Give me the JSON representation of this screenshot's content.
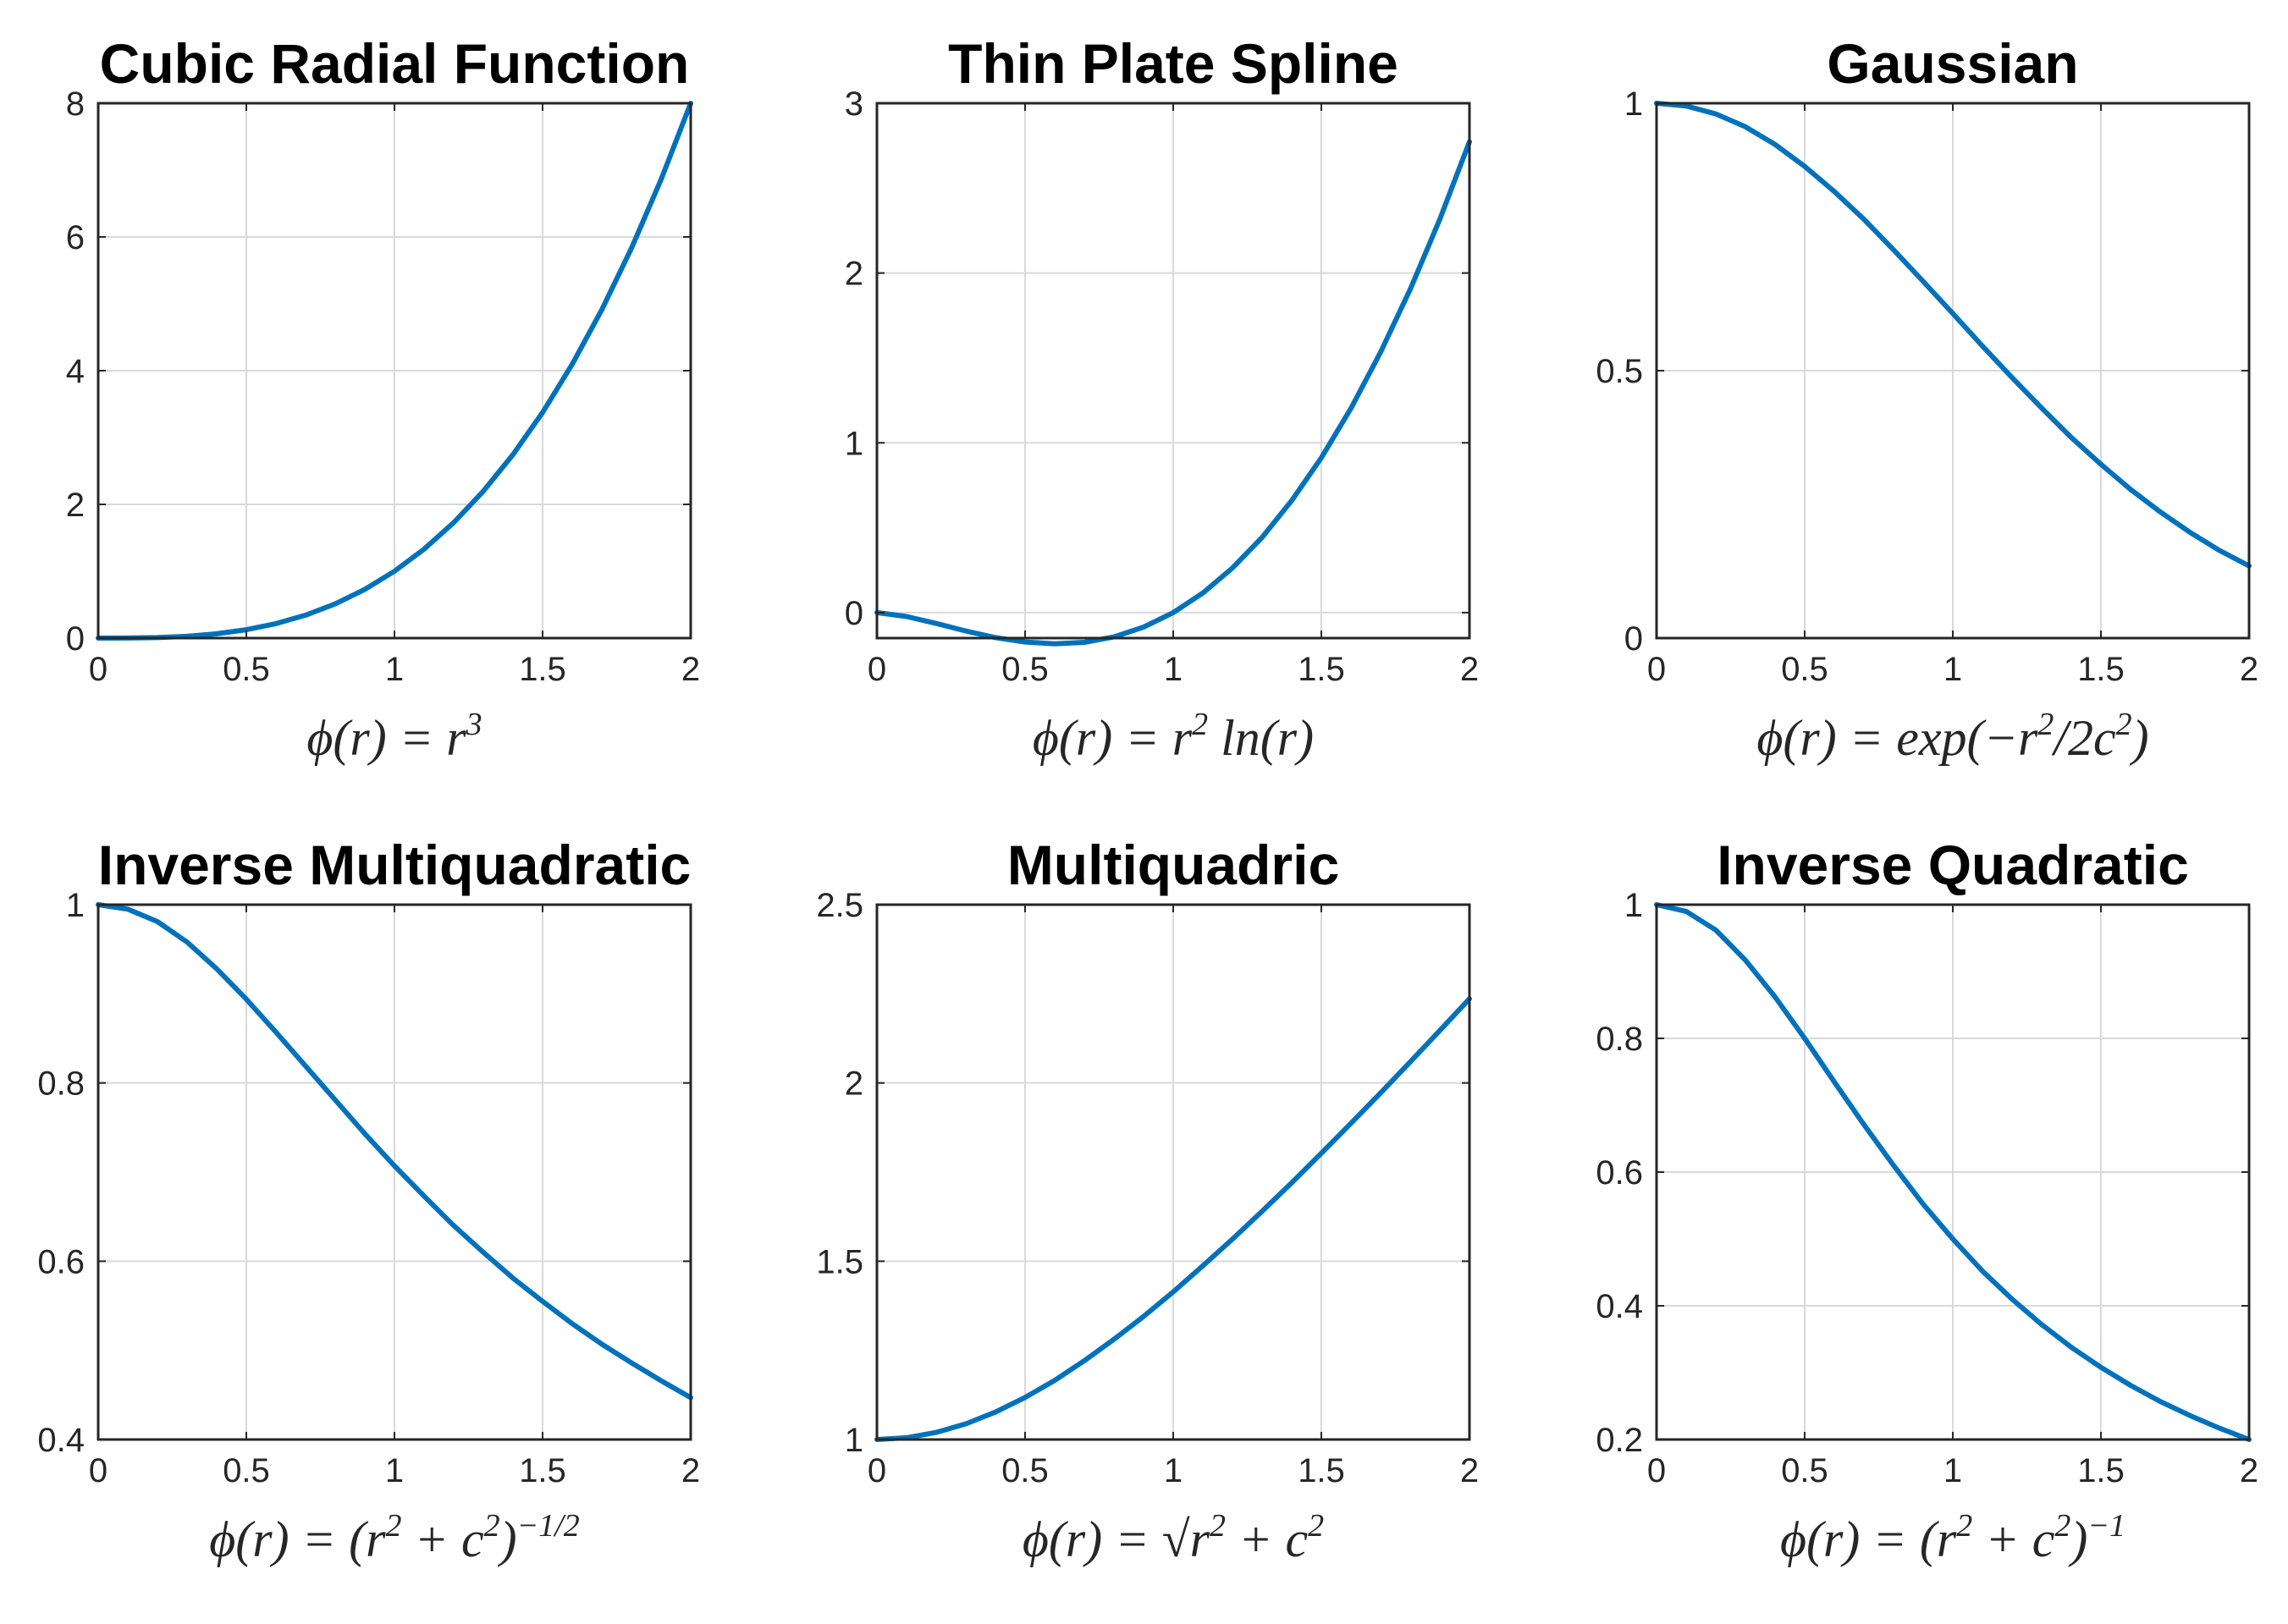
{
  "figure": {
    "line_color": "#0072BD",
    "grid_color": "#d9d9d9",
    "axis_color": "#262626"
  },
  "chart_data": [
    {
      "type": "line",
      "title": "Cubic Radial Function",
      "xlabel": "ϕ(r) = r³",
      "xlim": [
        0,
        2
      ],
      "ylim": [
        0,
        8
      ],
      "xticks": [
        0,
        0.5,
        1,
        1.5,
        2
      ],
      "xtick_labels": [
        "0",
        "0.5",
        "1",
        "1.5",
        "2"
      ],
      "yticks": [
        0,
        2,
        4,
        6,
        8
      ],
      "ytick_labels": [
        "0",
        "2",
        "4",
        "6",
        "8"
      ],
      "grid": true,
      "series": [
        {
          "name": "phi",
          "x": [
            0,
            0.1,
            0.2,
            0.3,
            0.4,
            0.5,
            0.6,
            0.7,
            0.8,
            0.9,
            1.0,
            1.1,
            1.2,
            1.3,
            1.4,
            1.5,
            1.6,
            1.7,
            1.8,
            1.9,
            2.0
          ],
          "y": [
            0,
            0.001,
            0.008,
            0.027,
            0.064,
            0.125,
            0.216,
            0.343,
            0.512,
            0.729,
            1.0,
            1.331,
            1.728,
            2.197,
            2.744,
            3.375,
            4.096,
            4.913,
            5.832,
            6.859,
            8.0
          ]
        }
      ]
    },
    {
      "type": "line",
      "title": "Thin Plate Spline",
      "xlabel": "ϕ(r) = r² ln(r)",
      "xlim": [
        0,
        2
      ],
      "ylim": [
        -0.15,
        3
      ],
      "xticks": [
        0,
        0.5,
        1,
        1.5,
        2
      ],
      "xtick_labels": [
        "0",
        "0.5",
        "1",
        "1.5",
        "2"
      ],
      "yticks": [
        0,
        1,
        2,
        3
      ],
      "ytick_labels": [
        "0",
        "1",
        "2",
        "3"
      ],
      "grid": true,
      "series": [
        {
          "name": "phi",
          "x": [
            0,
            0.1,
            0.2,
            0.3,
            0.4,
            0.5,
            0.6,
            0.7,
            0.8,
            0.9,
            1.0,
            1.1,
            1.2,
            1.3,
            1.4,
            1.5,
            1.6,
            1.7,
            1.8,
            1.9,
            2.0
          ],
          "y": [
            0,
            -0.023,
            -0.064,
            -0.108,
            -0.147,
            -0.173,
            -0.184,
            -0.175,
            -0.143,
            -0.085,
            0,
            0.115,
            0.263,
            0.443,
            0.66,
            0.912,
            1.203,
            1.534,
            1.904,
            2.317,
            2.773
          ]
        }
      ]
    },
    {
      "type": "line",
      "title": "Gaussian",
      "xlabel": "ϕ(r) = exp(−r²/2c²)",
      "xlim": [
        0,
        2
      ],
      "ylim": [
        0,
        1
      ],
      "xticks": [
        0,
        0.5,
        1,
        1.5,
        2
      ],
      "xtick_labels": [
        "0",
        "0.5",
        "1",
        "1.5",
        "2"
      ],
      "yticks": [
        0,
        0.5,
        1
      ],
      "ytick_labels": [
        "0",
        "0.5",
        "1"
      ],
      "grid": true,
      "series": [
        {
          "name": "phi",
          "x": [
            0,
            0.1,
            0.2,
            0.3,
            0.4,
            0.5,
            0.6,
            0.7,
            0.8,
            0.9,
            1.0,
            1.1,
            1.2,
            1.3,
            1.4,
            1.5,
            1.6,
            1.7,
            1.8,
            1.9,
            2.0
          ],
          "y": [
            1.0,
            0.995,
            0.98,
            0.956,
            0.923,
            0.882,
            0.835,
            0.783,
            0.726,
            0.667,
            0.607,
            0.546,
            0.487,
            0.43,
            0.375,
            0.325,
            0.278,
            0.236,
            0.198,
            0.164,
            0.135
          ]
        }
      ]
    },
    {
      "type": "line",
      "title": "Inverse Multiquadratic",
      "xlabel": "ϕ(r) = (r² + c²)^(−1/2)",
      "xlim": [
        0,
        2
      ],
      "ylim": [
        0.4,
        1
      ],
      "xticks": [
        0,
        0.5,
        1,
        1.5,
        2
      ],
      "xtick_labels": [
        "0",
        "0.5",
        "1",
        "1.5",
        "2"
      ],
      "yticks": [
        0.4,
        0.6,
        0.8,
        1
      ],
      "ytick_labels": [
        "0.4",
        "0.6",
        "0.8",
        "1"
      ],
      "grid": true,
      "series": [
        {
          "name": "phi",
          "x": [
            0,
            0.1,
            0.2,
            0.3,
            0.4,
            0.5,
            0.6,
            0.7,
            0.8,
            0.9,
            1.0,
            1.1,
            1.2,
            1.3,
            1.4,
            1.5,
            1.6,
            1.7,
            1.8,
            1.9,
            2.0
          ],
          "y": [
            1.0,
            0.995,
            0.981,
            0.958,
            0.928,
            0.894,
            0.857,
            0.819,
            0.781,
            0.743,
            0.707,
            0.673,
            0.64,
            0.61,
            0.581,
            0.555,
            0.53,
            0.507,
            0.486,
            0.466,
            0.447
          ]
        }
      ]
    },
    {
      "type": "line",
      "title": "Multiquadric",
      "xlabel": "ϕ(r) = √(r² + c²)",
      "xlim": [
        0,
        2
      ],
      "ylim": [
        1,
        2.5
      ],
      "xticks": [
        0,
        0.5,
        1,
        1.5,
        2
      ],
      "xtick_labels": [
        "0",
        "0.5",
        "1",
        "1.5",
        "2"
      ],
      "yticks": [
        1,
        1.5,
        2,
        2.5
      ],
      "ytick_labels": [
        "1",
        "1.5",
        "2",
        "2.5"
      ],
      "grid": true,
      "series": [
        {
          "name": "phi",
          "x": [
            0,
            0.1,
            0.2,
            0.3,
            0.4,
            0.5,
            0.6,
            0.7,
            0.8,
            0.9,
            1.0,
            1.1,
            1.2,
            1.3,
            1.4,
            1.5,
            1.6,
            1.7,
            1.8,
            1.9,
            2.0
          ],
          "y": [
            1.0,
            1.005,
            1.02,
            1.044,
            1.077,
            1.118,
            1.166,
            1.221,
            1.281,
            1.345,
            1.414,
            1.487,
            1.562,
            1.64,
            1.72,
            1.803,
            1.887,
            1.972,
            2.059,
            2.147,
            2.236
          ]
        }
      ]
    },
    {
      "type": "line",
      "title": "Inverse Quadratic",
      "xlabel": "ϕ(r) = (r² + c²)^(−1)",
      "xlim": [
        0,
        2
      ],
      "ylim": [
        0.2,
        1
      ],
      "xticks": [
        0,
        0.5,
        1,
        1.5,
        2
      ],
      "xtick_labels": [
        "0",
        "0.5",
        "1",
        "1.5",
        "2"
      ],
      "yticks": [
        0.2,
        0.4,
        0.6,
        0.8,
        1
      ],
      "ytick_labels": [
        "0.2",
        "0.4",
        "0.6",
        "0.8",
        "1"
      ],
      "grid": true,
      "series": [
        {
          "name": "phi",
          "x": [
            0,
            0.1,
            0.2,
            0.3,
            0.4,
            0.5,
            0.6,
            0.7,
            0.8,
            0.9,
            1.0,
            1.1,
            1.2,
            1.3,
            1.4,
            1.5,
            1.6,
            1.7,
            1.8,
            1.9,
            2.0
          ],
          "y": [
            1.0,
            0.99,
            0.962,
            0.917,
            0.862,
            0.8,
            0.735,
            0.671,
            0.61,
            0.552,
            0.5,
            0.452,
            0.41,
            0.372,
            0.338,
            0.308,
            0.281,
            0.257,
            0.236,
            0.217,
            0.2
          ]
        }
      ]
    }
  ]
}
